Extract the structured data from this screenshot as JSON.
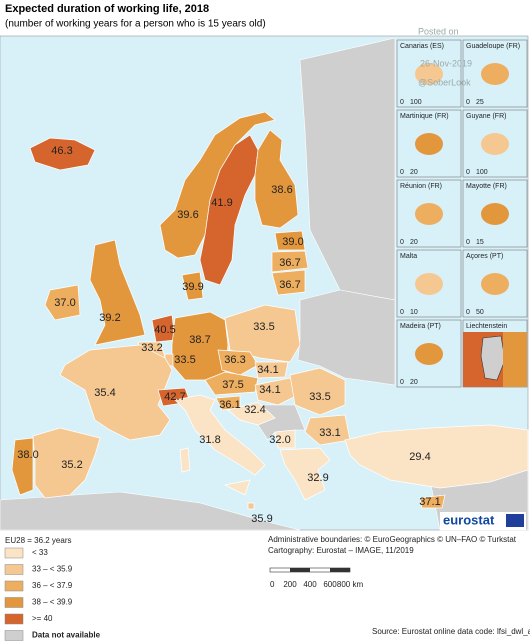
{
  "header": {
    "title": "Expected duration of working life, 2018",
    "subtitle": "(number of working years for a person who is 15 years old)"
  },
  "watermark": [
    "Posted on",
    "26-Nov-2019",
    "@SoberLook"
  ],
  "map": {
    "sea_color": "#d8f1f9",
    "regions": [
      {
        "label": "46.3",
        "color": "#d5652d"
      },
      {
        "label": "39.6",
        "color": "#e3973d"
      },
      {
        "label": "41.9",
        "color": "#d5652d"
      },
      {
        "label": "38.6",
        "color": "#e3973d"
      },
      {
        "label": "39.0",
        "color": "#e3973d"
      },
      {
        "label": "36.7",
        "color": "#eeae5f"
      },
      {
        "label": "36.7",
        "color": "#eeae5f"
      },
      {
        "label": "39.9",
        "color": "#e3973d"
      },
      {
        "label": "37.0",
        "color": "#eeae5f"
      },
      {
        "label": "39.2",
        "color": "#e3973d"
      },
      {
        "label": "40.5",
        "color": "#d5652d"
      },
      {
        "label": "33.2",
        "color": "#f5c892"
      },
      {
        "label": "38.7",
        "color": "#e3973d"
      },
      {
        "label": "33.5",
        "color": "#f5c892"
      },
      {
        "label": "33.5",
        "color": "#f5c892"
      },
      {
        "label": "36.3",
        "color": "#eeae5f"
      },
      {
        "label": "34.1",
        "color": "#f5c892"
      },
      {
        "label": "35.4",
        "color": "#f5c892"
      },
      {
        "label": "42.7",
        "color": "#d5652d"
      },
      {
        "label": "37.5",
        "color": "#eeae5f"
      },
      {
        "label": "34.1",
        "color": "#f5c892"
      },
      {
        "label": "36.1",
        "color": "#eeae5f"
      },
      {
        "label": "32.4",
        "color": "#fbe3c5"
      },
      {
        "label": "33.5",
        "color": "#f5c892"
      },
      {
        "label": "31.8",
        "color": "#fbe3c5"
      },
      {
        "label": "33.1",
        "color": "#f5c892"
      },
      {
        "label": "32.0",
        "color": "#fbe3c5"
      },
      {
        "label": "29.4",
        "color": "#fbe3c5"
      },
      {
        "label": "38.0",
        "color": "#e3973d"
      },
      {
        "label": "35.2",
        "color": "#f5c892"
      },
      {
        "label": "32.9",
        "color": "#fbe3c5"
      },
      {
        "label": "37.1",
        "color": "#eeae5f"
      },
      {
        "label": "35.9",
        "color": "#f5c892"
      }
    ]
  },
  "insets": [
    {
      "name": "Canarias (ES)",
      "scale": [
        "0",
        "100"
      ]
    },
    {
      "name": "Guadeloupe (FR)",
      "scale": [
        "0",
        "25"
      ]
    },
    {
      "name": "Martinique (FR)",
      "scale": [
        "0",
        "20"
      ]
    },
    {
      "name": "Guyane (FR)",
      "scale": [
        "0",
        "100"
      ]
    },
    {
      "name": "Réunion (FR)",
      "scale": [
        "0",
        "20"
      ]
    },
    {
      "name": "Mayotte (FR)",
      "scale": [
        "0",
        "15"
      ]
    },
    {
      "name": "Malta",
      "scale": [
        "0",
        "10"
      ]
    },
    {
      "name": "Açores (PT)",
      "scale": [
        "0",
        "50"
      ]
    },
    {
      "name": "Madeira (PT)",
      "scale": [
        "0",
        "20"
      ]
    },
    {
      "name": "Liechtenstein",
      "scale": []
    }
  ],
  "legend": {
    "note": "EU28 = 36.2 years",
    "classes": [
      {
        "label": "< 33",
        "color": "#fbe3c5"
      },
      {
        "label": "33 – < 35.9",
        "color": "#f5c892"
      },
      {
        "label": "36 – < 37.9",
        "color": "#eeae5f"
      },
      {
        "label": "38 – < 39.9",
        "color": "#e3973d"
      },
      {
        "label": ">= 40",
        "color": "#d5652d"
      }
    ],
    "missing": {
      "label": "Data not available",
      "color": "#cfcfcf"
    }
  },
  "footer": {
    "boundaries": "Administrative boundaries: © EuroGeographics © UN–FAO © Turkstat",
    "cartography": "Cartography: Eurostat – IMAGE, 11/2019",
    "scale": [
      "0",
      "200",
      "400",
      "600",
      "800 km"
    ],
    "source": "Source: Eurostat online data code: lfsi_dwl_a",
    "logo": "eurostat"
  }
}
